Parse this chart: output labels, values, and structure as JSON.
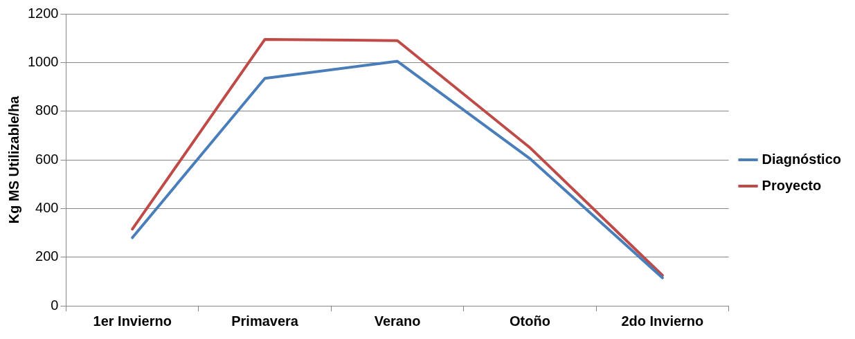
{
  "chart_data": {
    "type": "line",
    "ylabel": "Kg MS Utilizable/ha",
    "categories": [
      "1er Invierno",
      "Primavera",
      "Verano",
      "Otoño",
      "2do Invierno"
    ],
    "series": [
      {
        "name": "Diagnóstico",
        "color": "#4a7ebb",
        "values": [
          280,
          935,
          1005,
          605,
          115
        ]
      },
      {
        "name": "Proyecto",
        "color": "#be4b48",
        "values": [
          315,
          1095,
          1090,
          650,
          125
        ]
      }
    ],
    "ylim": [
      0,
      1200
    ],
    "yticks": [
      0,
      200,
      400,
      600,
      800,
      1000,
      1200
    ],
    "grid": "y",
    "legend": "right",
    "marker": "none",
    "line_style": "solid"
  }
}
